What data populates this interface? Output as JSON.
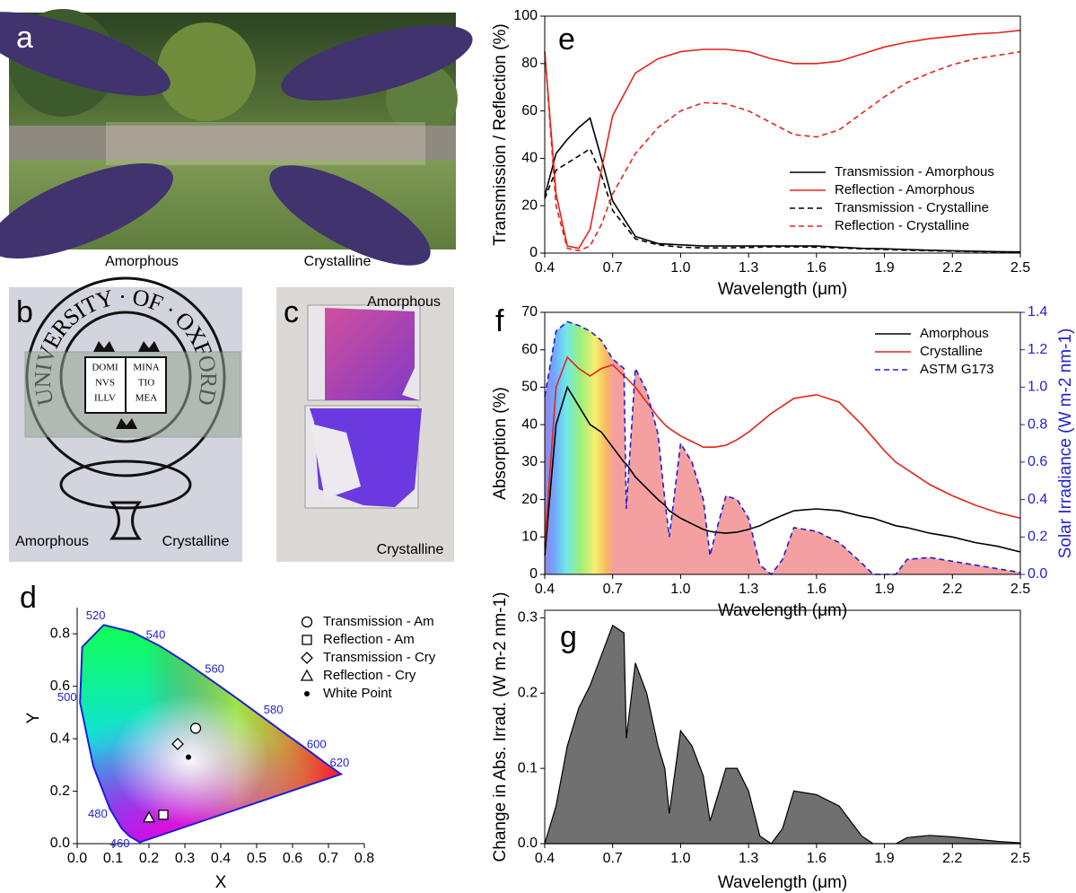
{
  "photos": [
    {
      "label": "a",
      "captions": [
        "Amorphous",
        "Crystalline"
      ]
    },
    {
      "label": "b",
      "emblem_text": "UNIVERSITY · OF · OXFORD",
      "book_left": [
        "DOMI",
        "NVS",
        "ILLV"
      ],
      "book_right": [
        "MINA",
        "TIO",
        "MEA"
      ],
      "captions": [
        "Amorphous",
        "Crystalline"
      ]
    },
    {
      "label": "c",
      "captions": [
        "Amorphous",
        "Crystalline"
      ]
    }
  ],
  "chart_data": [
    {
      "type": "line",
      "panel_label": "e",
      "x_label": "Wavelength (μm)",
      "y_label": "Transmission / Reflection (%)",
      "x": [
        0.4,
        0.45,
        0.5,
        0.55,
        0.6,
        0.65,
        0.7,
        0.8,
        0.9,
        1.0,
        1.1,
        1.2,
        1.3,
        1.4,
        1.5,
        1.6,
        1.7,
        1.8,
        1.9,
        2.0,
        2.1,
        2.2,
        2.3,
        2.4,
        2.5
      ],
      "xlim": [
        0.4,
        2.5
      ],
      "xticks": [
        0.4,
        0.7,
        {
          "value": 1,
          "label": "1.0"
        },
        1.3,
        1.6,
        1.9,
        2.2,
        2.5
      ],
      "ylim": [
        0,
        100
      ],
      "yticks": [
        0,
        20,
        40,
        60,
        80,
        100
      ],
      "legend": "lower right",
      "series": [
        {
          "name": "Transmission - Amorphous",
          "color": "#000000",
          "line_style": "solid",
          "values": [
            24,
            42,
            48,
            53,
            57,
            40,
            22,
            7,
            4,
            3.5,
            3,
            3,
            3,
            3,
            3,
            3,
            2.5,
            2,
            1.8,
            1.5,
            1.2,
            1,
            0.8,
            0.6,
            0.5
          ]
        },
        {
          "name": "Reflection - Amorphous",
          "color": "#e8221c",
          "line_style": "solid",
          "values": [
            85,
            25,
            3,
            2,
            10,
            35,
            58,
            76,
            82,
            85,
            86,
            86,
            85,
            82,
            80,
            80,
            81,
            84,
            87,
            89,
            90.5,
            91.5,
            92.5,
            93,
            94
          ]
        },
        {
          "name": "Transmission - Crystalline",
          "color": "#000000",
          "line_style": "dashed",
          "values": [
            23,
            35,
            38,
            41,
            44,
            33,
            18,
            6,
            3.5,
            2.5,
            2.2,
            2.2,
            2.4,
            2.6,
            2.6,
            2.5,
            2.2,
            1.8,
            1.5,
            1.2,
            1,
            0.8,
            0.6,
            0.5,
            0.4
          ]
        },
        {
          "name": "Reflection - Crystalline",
          "color": "#e8221c",
          "line_style": "dashed",
          "values": [
            85,
            20,
            2,
            1,
            3,
            12,
            25,
            42,
            53,
            60,
            63.5,
            63,
            60,
            55,
            50,
            49,
            52,
            59,
            66,
            72,
            76,
            79.5,
            82,
            83.5,
            85
          ]
        }
      ]
    },
    {
      "type": "line",
      "panel_label": "f",
      "x_label": "Wavelength (μm)",
      "y_label": "Absorption (%)",
      "y2_label": "Solar Irradiance (W m-2 nm-1)",
      "x": [
        0.4,
        0.45,
        0.5,
        0.55,
        0.6,
        0.65,
        0.7,
        0.75,
        0.76,
        0.8,
        0.85,
        0.9,
        0.93,
        0.95,
        1.0,
        1.05,
        1.1,
        1.13,
        1.15,
        1.2,
        1.25,
        1.3,
        1.35,
        1.4,
        1.45,
        1.5,
        1.6,
        1.7,
        1.8,
        1.85,
        1.9,
        1.95,
        2.0,
        2.1,
        2.2,
        2.3,
        2.4,
        2.5
      ],
      "xlim": [
        0.4,
        2.5
      ],
      "xticks": [
        0.4,
        0.7,
        {
          "value": 1,
          "label": "1.0"
        },
        1.3,
        1.6,
        1.9,
        2.2,
        2.5
      ],
      "ylim": [
        0,
        70
      ],
      "yticks": [
        0,
        10,
        20,
        30,
        40,
        50,
        60,
        70
      ],
      "y2lim": [
        0,
        1.4
      ],
      "y2ticks": [
        {
          "value": 0,
          "label": "0.0"
        },
        0.2,
        0.4,
        0.6,
        0.8,
        {
          "value": 1,
          "label": "1.0"
        },
        1.2,
        1.4
      ],
      "y2_color": "#1f1fd6",
      "legend": "upper right",
      "series": [
        {
          "name": "Amorphous",
          "color": "#000000",
          "line_style": "solid",
          "values": [
            5,
            40,
            50,
            45,
            40,
            38,
            34,
            30,
            29.5,
            26,
            23,
            20,
            18.5,
            17,
            15,
            13.5,
            12,
            11.5,
            11.3,
            11,
            11.3,
            12,
            13,
            14.5,
            15.8,
            17,
            17.5,
            17,
            15.5,
            15,
            14,
            13,
            12.5,
            11,
            10,
            8.5,
            7.5,
            6
          ]
        },
        {
          "name": "Crystalline",
          "color": "#e8221c",
          "line_style": "solid",
          "values": [
            8,
            50,
            58,
            55,
            53,
            55,
            56,
            53,
            52.5,
            50,
            46,
            42,
            40,
            39,
            37,
            35.5,
            34,
            34,
            34,
            34.5,
            36,
            38,
            40.5,
            43,
            45,
            47,
            48,
            46,
            40,
            36.5,
            33,
            30,
            28,
            24,
            21,
            18.5,
            16.5,
            15
          ]
        },
        {
          "name": "ASTM G173",
          "color": "#1f1fd6",
          "line_style": "dashed",
          "axis": "y2",
          "fill_under": true,
          "values": [
            0.95,
            1.3,
            1.35,
            1.33,
            1.3,
            1.25,
            1.15,
            1.1,
            0.35,
            1.1,
            0.98,
            0.75,
            0.4,
            0.2,
            0.7,
            0.6,
            0.4,
            0.1,
            0.2,
            0.42,
            0.4,
            0.3,
            0.05,
            0,
            0.08,
            0.25,
            0.23,
            0.17,
            0.06,
            0,
            0,
            0,
            0.08,
            0.09,
            0.07,
            0.05,
            0.03,
            0.01
          ]
        }
      ]
    },
    {
      "type": "area",
      "panel_label": "g",
      "x_label": "Wavelength (μm)",
      "y_label": "Change in Abs. Irrad. (W m-2 nm-1)",
      "color": "#707070",
      "x": [
        0.4,
        0.45,
        0.5,
        0.55,
        0.6,
        0.65,
        0.7,
        0.75,
        0.76,
        0.8,
        0.85,
        0.9,
        0.93,
        0.95,
        1.0,
        1.05,
        1.1,
        1.13,
        1.15,
        1.2,
        1.25,
        1.3,
        1.35,
        1.4,
        1.45,
        1.5,
        1.6,
        1.7,
        1.8,
        1.85,
        1.9,
        1.95,
        2.0,
        2.1,
        2.2,
        2.3,
        2.4,
        2.5
      ],
      "xlim": [
        0.4,
        2.5
      ],
      "xticks": [
        0.4,
        0.7,
        {
          "value": 1,
          "label": "1.0"
        },
        1.3,
        1.6,
        1.9,
        2.2,
        2.5
      ],
      "ylim": [
        0,
        0.31
      ],
      "yticks": [
        {
          "value": 0,
          "label": "0.0"
        },
        0.1,
        0.2,
        0.3
      ],
      "values": [
        0,
        0.05,
        0.13,
        0.18,
        0.21,
        0.25,
        0.29,
        0.28,
        0.14,
        0.24,
        0.2,
        0.13,
        0.1,
        0.04,
        0.15,
        0.13,
        0.09,
        0.03,
        0.05,
        0.1,
        0.1,
        0.07,
        0.01,
        0,
        0.02,
        0.07,
        0.065,
        0.05,
        0.01,
        0,
        0,
        0,
        0.008,
        0.011,
        0.009,
        0.006,
        0.003,
        0.001
      ]
    },
    {
      "type": "scatter",
      "panel_label": "d",
      "x_label": "X",
      "y_label": "Y",
      "xlim": [
        0,
        0.8
      ],
      "xticks": [
        {
          "value": 0,
          "label": "0.0"
        },
        0.1,
        0.2,
        0.3,
        0.4,
        0.5,
        0.6,
        0.7,
        0.8
      ],
      "ylim": [
        0,
        0.9
      ],
      "yticks": [
        {
          "value": 0,
          "label": "0.0"
        },
        0.2,
        0.4,
        0.6,
        0.8
      ],
      "legend": "upper right",
      "locus": {
        "color": "#1f1fd6",
        "x": [
          0.174,
          0.144,
          0.124,
          0.091,
          0.045,
          0.008,
          0.014,
          0.074,
          0.155,
          0.23,
          0.302,
          0.373,
          0.444,
          0.512,
          0.575,
          0.627,
          0.691,
          0.735
        ],
        "y": [
          0.005,
          0.03,
          0.058,
          0.133,
          0.295,
          0.538,
          0.75,
          0.834,
          0.806,
          0.754,
          0.692,
          0.624,
          0.555,
          0.487,
          0.424,
          0.373,
          0.308,
          0.265
        ],
        "labels": [
          null,
          "460",
          null,
          "480",
          null,
          "500",
          null,
          "520",
          null,
          "540",
          null,
          "560",
          null,
          "580",
          null,
          "600",
          "620",
          null
        ]
      },
      "series": [
        {
          "name": "Transmission - Am",
          "marker": "circle",
          "x": [
            0.33
          ],
          "values": [
            0.44
          ]
        },
        {
          "name": "Reflection - Am",
          "marker": "square",
          "x": [
            0.24
          ],
          "values": [
            0.11
          ]
        },
        {
          "name": "Transmission - Cry",
          "marker": "diamond",
          "x": [
            0.28
          ],
          "values": [
            0.38
          ]
        },
        {
          "name": "Reflection - Cry",
          "marker": "triangle",
          "x": [
            0.2
          ],
          "values": [
            0.1
          ]
        },
        {
          "name": "White Point",
          "marker": "dot",
          "x": [
            0.31
          ],
          "values": [
            0.33
          ]
        }
      ]
    }
  ]
}
